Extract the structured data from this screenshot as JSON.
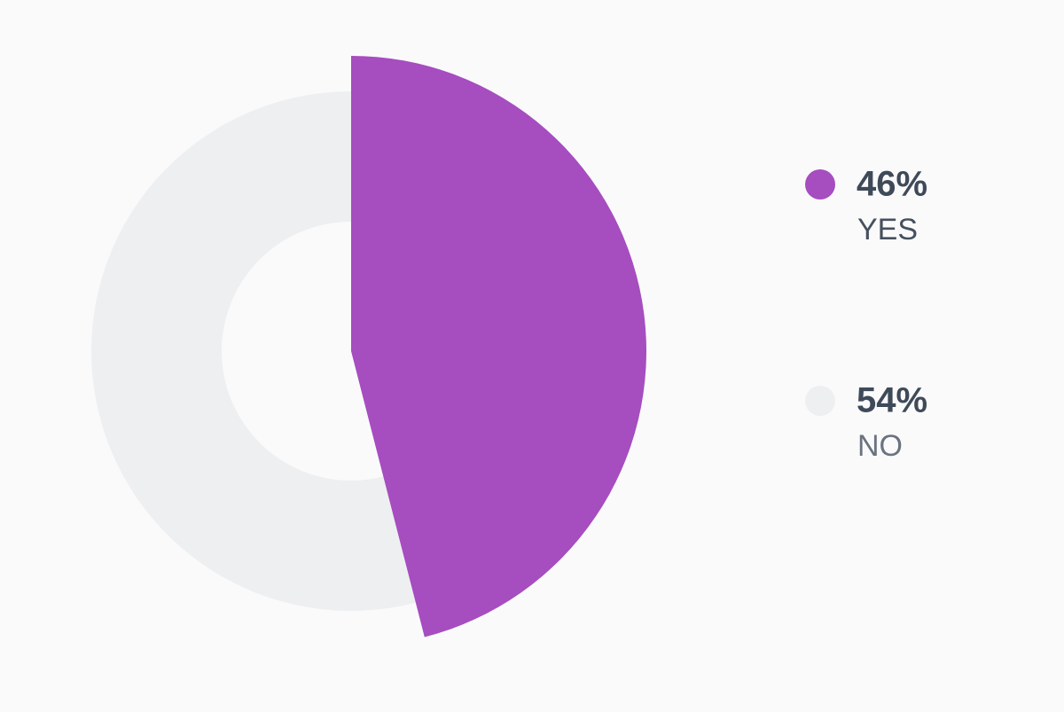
{
  "chart_data": {
    "type": "pie",
    "categories": [
      "YES",
      "NO"
    ],
    "values": [
      46,
      54
    ],
    "value_labels": [
      "46%",
      "54%"
    ],
    "colors": [
      "#a64dbf",
      "#eeeff1"
    ]
  }
}
